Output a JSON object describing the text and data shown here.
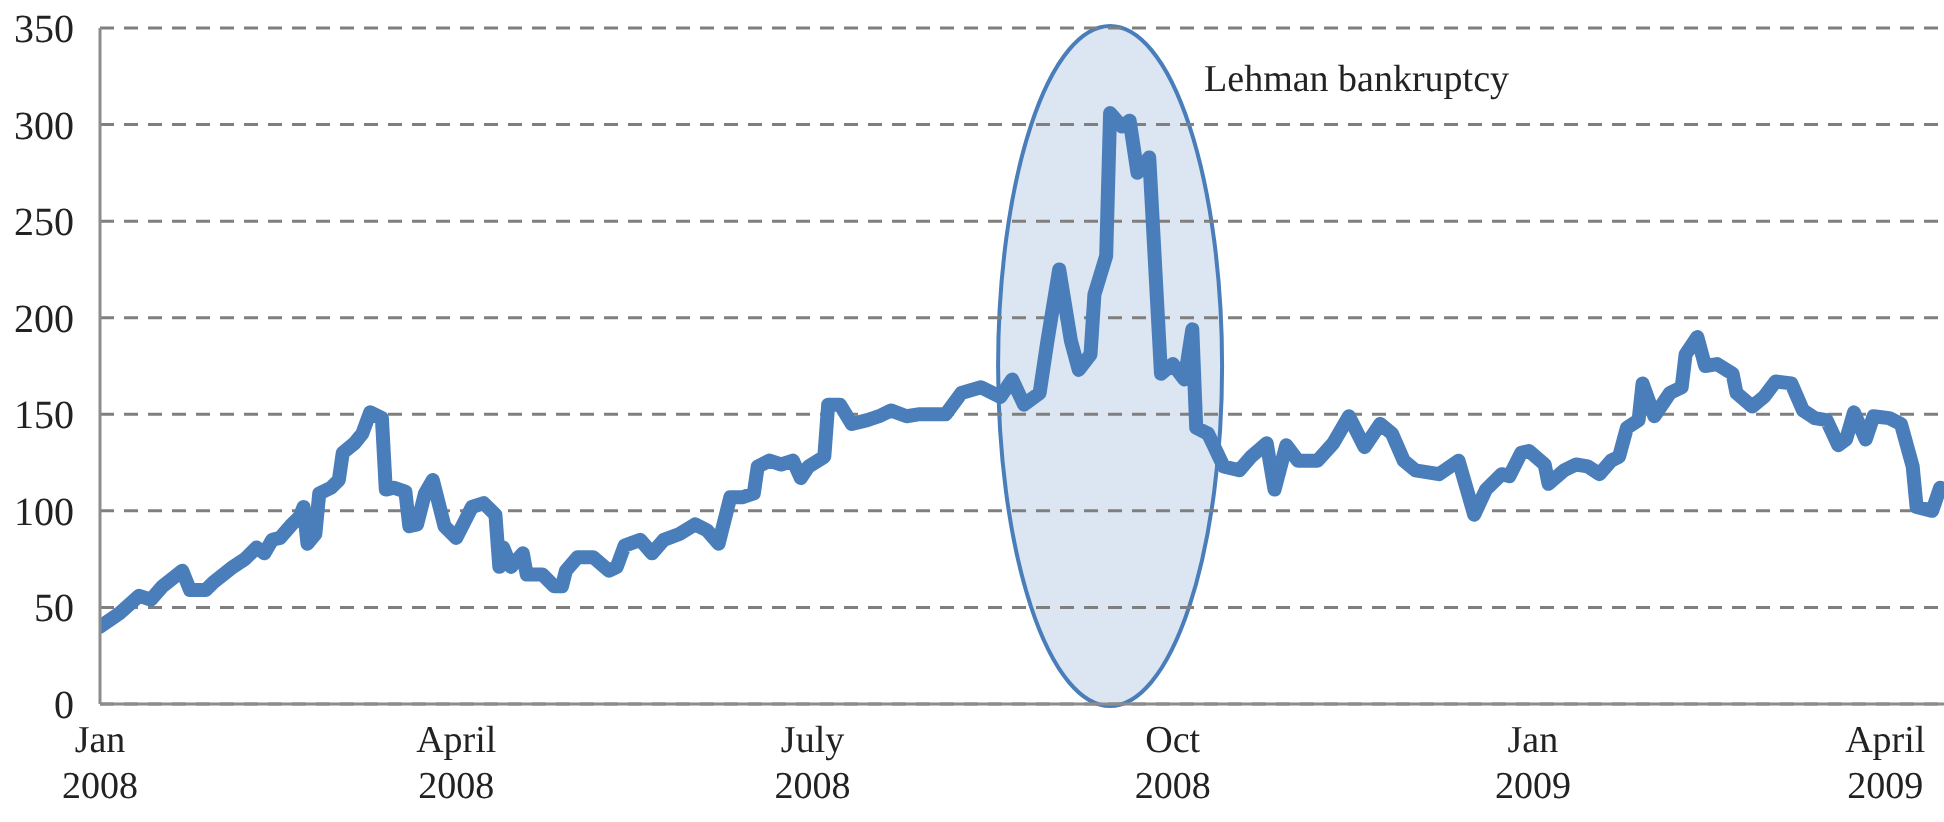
{
  "chart_data": {
    "type": "line",
    "x": [
      "2008-01-01",
      "2008-01-06",
      "2008-01-11",
      "2008-01-14",
      "2008-01-17",
      "2008-01-22",
      "2008-01-24",
      "2008-01-28",
      "2008-01-30",
      "2008-02-04",
      "2008-02-07",
      "2008-02-10",
      "2008-02-12",
      "2008-02-14",
      "2008-02-16",
      "2008-02-19",
      "2008-02-21",
      "2008-02-22",
      "2008-02-23",
      "2008-02-25",
      "2008-02-26",
      "2008-02-29",
      "2008-03-02",
      "2008-03-03",
      "2008-03-06",
      "2008-03-08",
      "2008-03-10",
      "2008-03-13",
      "2008-03-14",
      "2008-03-16",
      "2008-03-19",
      "2008-03-20",
      "2008-03-22",
      "2008-03-24",
      "2008-03-26",
      "2008-03-29",
      "2008-04-01",
      "2008-04-05",
      "2008-04-08",
      "2008-04-11",
      "2008-04-12",
      "2008-04-13",
      "2008-04-15",
      "2008-04-18",
      "2008-04-19",
      "2008-04-23",
      "2008-04-26",
      "2008-04-28",
      "2008-04-29",
      "2008-05-02",
      "2008-05-06",
      "2008-05-10",
      "2008-05-12",
      "2008-05-14",
      "2008-05-18",
      "2008-05-21",
      "2008-05-24",
      "2008-05-28",
      "2008-06-01",
      "2008-06-04",
      "2008-06-07",
      "2008-06-10",
      "2008-06-13",
      "2008-06-16",
      "2008-06-17",
      "2008-06-20",
      "2008-06-23",
      "2008-06-26",
      "2008-06-28",
      "2008-06-30",
      "2008-07-04",
      "2008-07-05",
      "2008-07-08",
      "2008-07-11",
      "2008-07-15",
      "2008-07-18",
      "2008-07-21",
      "2008-07-25",
      "2008-07-28",
      "2008-08-04",
      "2008-08-08",
      "2008-08-13",
      "2008-08-18",
      "2008-08-21",
      "2008-08-24",
      "2008-08-28",
      "2008-08-30",
      "2008-09-02",
      "2008-09-05",
      "2008-09-07",
      "2008-09-10",
      "2008-09-11",
      "2008-09-14",
      "2008-09-15",
      "2008-09-18",
      "2008-09-20",
      "2008-09-22",
      "2008-09-25",
      "2008-09-28",
      "2008-10-01",
      "2008-10-04",
      "2008-10-06",
      "2008-10-07",
      "2008-10-10",
      "2008-10-14",
      "2008-10-18",
      "2008-10-21",
      "2008-10-25",
      "2008-10-27",
      "2008-10-30",
      "2008-11-02",
      "2008-11-07",
      "2008-11-11",
      "2008-11-15",
      "2008-11-19",
      "2008-11-23",
      "2008-11-26",
      "2008-11-29",
      "2008-12-02",
      "2008-12-08",
      "2008-12-13",
      "2008-12-17",
      "2008-12-20",
      "2008-12-24",
      "2008-12-26",
      "2008-12-29",
      "2008-12-31",
      "2009-01-04",
      "2009-01-05",
      "2009-01-09",
      "2009-01-12",
      "2009-01-15",
      "2009-01-18",
      "2009-01-21",
      "2009-01-23",
      "2009-01-25",
      "2009-01-28",
      "2009-01-29",
      "2009-02-01",
      "2009-02-05",
      "2009-02-08",
      "2009-02-09",
      "2009-02-12",
      "2009-02-14",
      "2009-02-17",
      "2009-02-21",
      "2009-02-22",
      "2009-02-26",
      "2009-03-01",
      "2009-03-04",
      "2009-03-08",
      "2009-03-11",
      "2009-03-14",
      "2009-03-17",
      "2009-03-20",
      "2009-03-22",
      "2009-03-24",
      "2009-03-27",
      "2009-03-29",
      "2009-04-02",
      "2009-04-05",
      "2009-04-08",
      "2009-04-09",
      "2009-04-13",
      "2009-04-15"
    ],
    "series": [
      {
        "color": "#4a7ebb",
        "values": [
          40,
          47,
          56,
          54,
          61,
          69,
          59,
          59,
          63,
          71,
          75,
          81,
          78,
          85,
          86,
          93,
          97,
          102,
          83,
          88,
          109,
          112,
          116,
          130,
          135,
          140,
          151,
          148,
          111,
          112,
          110,
          92,
          93,
          109,
          116,
          92,
          86,
          102,
          104,
          98,
          71,
          81,
          71,
          78,
          67,
          67,
          61,
          61,
          69,
          76,
          76,
          69,
          71,
          82,
          85,
          78,
          85,
          88,
          93,
          90,
          83,
          107,
          107,
          109,
          123,
          126,
          124,
          126,
          117,
          123,
          128,
          155,
          155,
          145,
          147,
          149,
          152,
          149,
          150,
          150,
          161,
          164,
          159,
          168,
          155,
          161,
          188,
          225,
          188,
          173,
          181,
          212,
          232,
          306,
          299,
          302,
          275,
          283,
          171,
          176,
          168,
          194,
          143,
          140,
          123,
          121,
          128,
          135,
          111,
          134,
          126,
          126,
          135,
          149,
          133,
          145,
          140,
          126,
          121,
          119,
          126,
          98,
          111,
          119,
          118,
          130,
          131,
          124,
          114,
          121,
          124,
          123,
          119,
          126,
          128,
          143,
          147,
          166,
          149,
          161,
          164,
          181,
          190,
          175,
          176,
          171,
          161,
          154,
          159,
          167,
          166,
          152,
          148,
          147,
          134,
          137,
          151,
          137,
          149,
          148,
          145,
          123,
          102,
          100,
          112
        ]
      }
    ],
    "xlim": [
      "2008-01-01",
      "2009-04-16"
    ],
    "xticks": [
      {
        "value": "2008-01-01",
        "label": "Jan 2008"
      },
      {
        "value": "2008-04-01",
        "label": "April 2008"
      },
      {
        "value": "2008-07-01",
        "label": "July 2008"
      },
      {
        "value": "2008-10-01",
        "label": "Oct 2008"
      },
      {
        "value": "2009-01-01",
        "label": "Jan 2009"
      },
      {
        "value": "2009-04-01",
        "label": "April 2009"
      }
    ],
    "ylim": [
      0,
      350
    ],
    "yticks": [
      0,
      50,
      100,
      150,
      200,
      250,
      300,
      350
    ],
    "grid": "y",
    "annotations": [
      {
        "text": "Lehman bankruptcy",
        "x": "2008-09-15",
        "y": 306
      }
    ]
  }
}
